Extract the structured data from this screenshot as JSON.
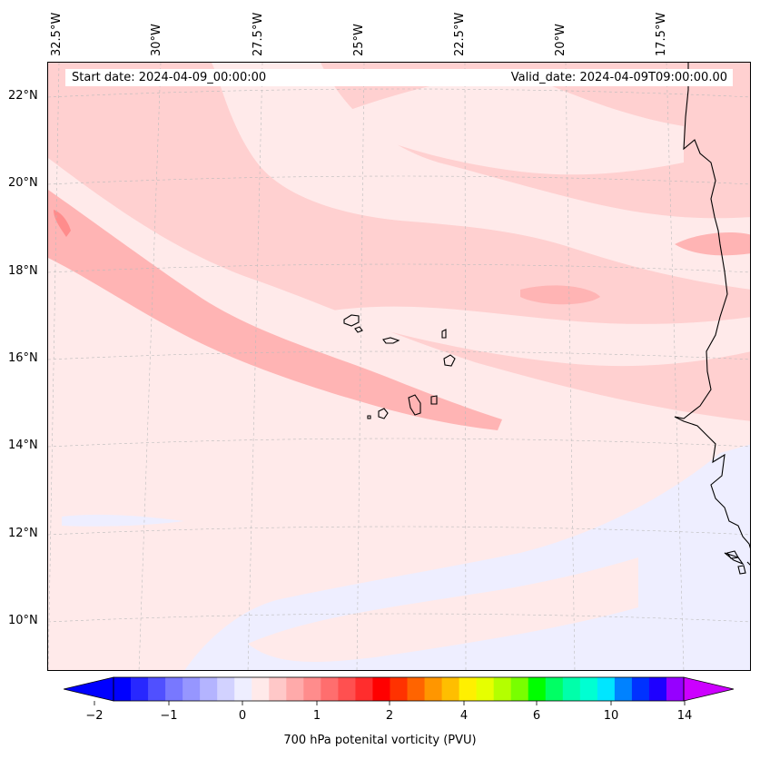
{
  "map": {
    "start_date": "Start date: 2024-04-09_00:00:00",
    "valid_date": "Valid_date: 2024-04-09T09:00:00.00",
    "background": "#ffeaea",
    "lon_labels": [
      "32.5°W",
      "30°W",
      "27.5°W",
      "25°W",
      "22.5°W",
      "20°W",
      "17.5°W"
    ],
    "lat_labels": [
      "22°N",
      "20°N",
      "18°N",
      "16°N",
      "14°N",
      "12°N",
      "10°N"
    ],
    "field_colors": {
      "very_light": "#ffeaea",
      "light": "#ffd0d0",
      "medium": "#ffb4b4",
      "strong": "#ff8c8c",
      "negative": "#eeeeff"
    },
    "features": [
      "Cape Verde islands",
      "West African coastline"
    ]
  },
  "colorbar": {
    "label": "700 hPa potenital vorticity (PVU)",
    "tick_labels": [
      "−2",
      "−1",
      "0",
      "1",
      "2",
      "4",
      "6",
      "10",
      "14"
    ],
    "colors": [
      "#0000ff",
      "#2828ff",
      "#5050ff",
      "#7878ff",
      "#9696ff",
      "#b4b4ff",
      "#d2d2ff",
      "#eeeeff",
      "#ffeaea",
      "#ffc8c8",
      "#ffaaaa",
      "#ff8c8c",
      "#ff6e6e",
      "#ff5050",
      "#ff2d2d",
      "#ff0000",
      "#ff3200",
      "#ff6400",
      "#ff9600",
      "#ffbe00",
      "#fff000",
      "#e6ff00",
      "#b4ff00",
      "#78ff00",
      "#00ff00",
      "#00ff64",
      "#00ffaa",
      "#00ffd2",
      "#00e6ff",
      "#0082ff",
      "#0032ff",
      "#1e00ff",
      "#9600ff"
    ],
    "extend_low_color": "#0000ff",
    "extend_high_color": "#cc00ff"
  }
}
